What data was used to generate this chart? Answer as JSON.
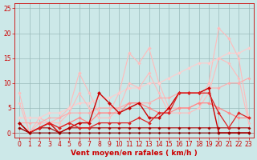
{
  "background_color": "#cce8e8",
  "grid_color": "#99bbbb",
  "xlabel": "Vent moyen/en rafales ( km/h )",
  "xlabel_color": "#cc0000",
  "xlabel_fontsize": 6.5,
  "tick_color": "#cc0000",
  "tick_fontsize": 5.5,
  "xlim": [
    -0.5,
    23.5
  ],
  "ylim": [
    -1,
    26
  ],
  "yticks": [
    0,
    5,
    10,
    15,
    20,
    25
  ],
  "xticks": [
    0,
    1,
    2,
    3,
    4,
    5,
    6,
    7,
    8,
    9,
    10,
    11,
    12,
    13,
    14,
    15,
    16,
    17,
    18,
    19,
    20,
    21,
    22,
    23
  ],
  "series": [
    {
      "x": [
        0,
        1,
        2,
        3,
        4,
        5,
        6,
        7,
        8,
        9,
        10,
        11,
        12,
        13,
        14,
        15,
        16,
        17,
        18,
        19,
        20,
        21,
        22,
        23
      ],
      "y": [
        8,
        0,
        3,
        2,
        3,
        5,
        12,
        8,
        4,
        4,
        8,
        16,
        14,
        17,
        10,
        5,
        5,
        5,
        6,
        10,
        21,
        19,
        15,
        3
      ],
      "color": "#ffbbbb",
      "lw": 0.8,
      "marker": "D",
      "ms": 2.0
    },
    {
      "x": [
        0,
        1,
        2,
        3,
        4,
        5,
        6,
        7,
        8,
        9,
        10,
        11,
        12,
        13,
        14,
        15,
        16,
        17,
        18,
        19,
        20,
        21,
        22,
        23
      ],
      "y": [
        3,
        3,
        3,
        4,
        4,
        5,
        6,
        6,
        7,
        7,
        8,
        9,
        9,
        10,
        10,
        11,
        12,
        13,
        14,
        14,
        15,
        16,
        16,
        17
      ],
      "color": "#ffcccc",
      "lw": 0.8,
      "marker": "D",
      "ms": 2.0
    },
    {
      "x": [
        0,
        1,
        2,
        3,
        4,
        5,
        6,
        7,
        8,
        9,
        10,
        11,
        12,
        13,
        14,
        15,
        16,
        17,
        18,
        19,
        20,
        21,
        22,
        23
      ],
      "y": [
        6,
        0,
        2,
        2,
        2,
        4,
        8,
        5,
        3,
        3,
        5,
        10,
        9,
        12,
        8,
        4,
        4,
        4,
        5,
        8,
        15,
        14,
        11,
        2
      ],
      "color": "#ffbbbb",
      "lw": 0.8,
      "marker": "D",
      "ms": 1.8
    },
    {
      "x": [
        0,
        1,
        2,
        3,
        4,
        5,
        6,
        7,
        8,
        9,
        10,
        11,
        12,
        13,
        14,
        15,
        16,
        17,
        18,
        19,
        20,
        21,
        22,
        23
      ],
      "y": [
        2,
        2,
        2,
        3,
        3,
        4,
        4,
        4,
        5,
        5,
        5,
        6,
        6,
        6,
        7,
        7,
        8,
        8,
        8,
        9,
        9,
        10,
        10,
        11
      ],
      "color": "#ffaaaa",
      "lw": 0.8,
      "marker": "D",
      "ms": 1.8
    },
    {
      "x": [
        0,
        1,
        2,
        3,
        4,
        5,
        6,
        7,
        8,
        9,
        10,
        11,
        12,
        13,
        14,
        15,
        16,
        17,
        18,
        19,
        20,
        21,
        22,
        23
      ],
      "y": [
        2,
        0,
        1,
        2,
        1,
        2,
        3,
        2,
        4,
        4,
        4,
        6,
        6,
        5,
        4,
        4,
        5,
        5,
        6,
        6,
        5,
        4,
        3,
        3
      ],
      "color": "#ff8888",
      "lw": 0.9,
      "marker": "D",
      "ms": 2.0
    },
    {
      "x": [
        0,
        1,
        2,
        3,
        4,
        5,
        6,
        7,
        8,
        9,
        10,
        11,
        12,
        13,
        14,
        15,
        16,
        17,
        18,
        19,
        20,
        21,
        22,
        23
      ],
      "y": [
        2,
        0,
        1,
        2,
        0,
        1,
        2,
        2,
        8,
        6,
        4,
        5,
        6,
        3,
        3,
        5,
        8,
        8,
        8,
        9,
        0,
        0,
        0,
        0
      ],
      "color": "#cc0000",
      "lw": 1.0,
      "marker": "D",
      "ms": 2.2
    },
    {
      "x": [
        0,
        1,
        2,
        3,
        4,
        5,
        6,
        7,
        8,
        9,
        10,
        11,
        12,
        13,
        14,
        15,
        16,
        17,
        18,
        19,
        20,
        21,
        22,
        23
      ],
      "y": [
        2,
        0,
        1,
        1,
        0,
        1,
        1,
        1,
        1,
        1,
        1,
        1,
        1,
        1,
        1,
        1,
        1,
        1,
        1,
        1,
        1,
        1,
        1,
        1
      ],
      "color": "#aa0000",
      "lw": 0.8,
      "marker": "D",
      "ms": 1.8
    },
    {
      "x": [
        0,
        1,
        2,
        3,
        4,
        5,
        6,
        7,
        8,
        9,
        10,
        11,
        12,
        13,
        14,
        15,
        16,
        17,
        18,
        19,
        20,
        21,
        22,
        23
      ],
      "y": [
        1,
        0,
        1,
        2,
        1,
        2,
        1,
        1,
        2,
        2,
        2,
        2,
        3,
        2,
        4,
        4,
        8,
        8,
        8,
        8,
        4,
        1,
        4,
        3
      ],
      "color": "#dd2222",
      "lw": 0.9,
      "marker": "D",
      "ms": 2.0
    },
    {
      "x": [
        0,
        1,
        2,
        3,
        4,
        5,
        6,
        7,
        8,
        9,
        10,
        11,
        12,
        13,
        14,
        15,
        16,
        17,
        18,
        19,
        20,
        21,
        22,
        23
      ],
      "y": [
        1,
        0,
        0,
        0,
        0,
        0,
        0,
        0,
        0,
        0,
        0,
        0,
        0,
        0,
        0,
        0,
        0,
        0,
        0,
        0,
        0,
        0,
        0,
        0
      ],
      "color": "#880000",
      "lw": 0.7,
      "marker": "D",
      "ms": 1.5
    }
  ]
}
